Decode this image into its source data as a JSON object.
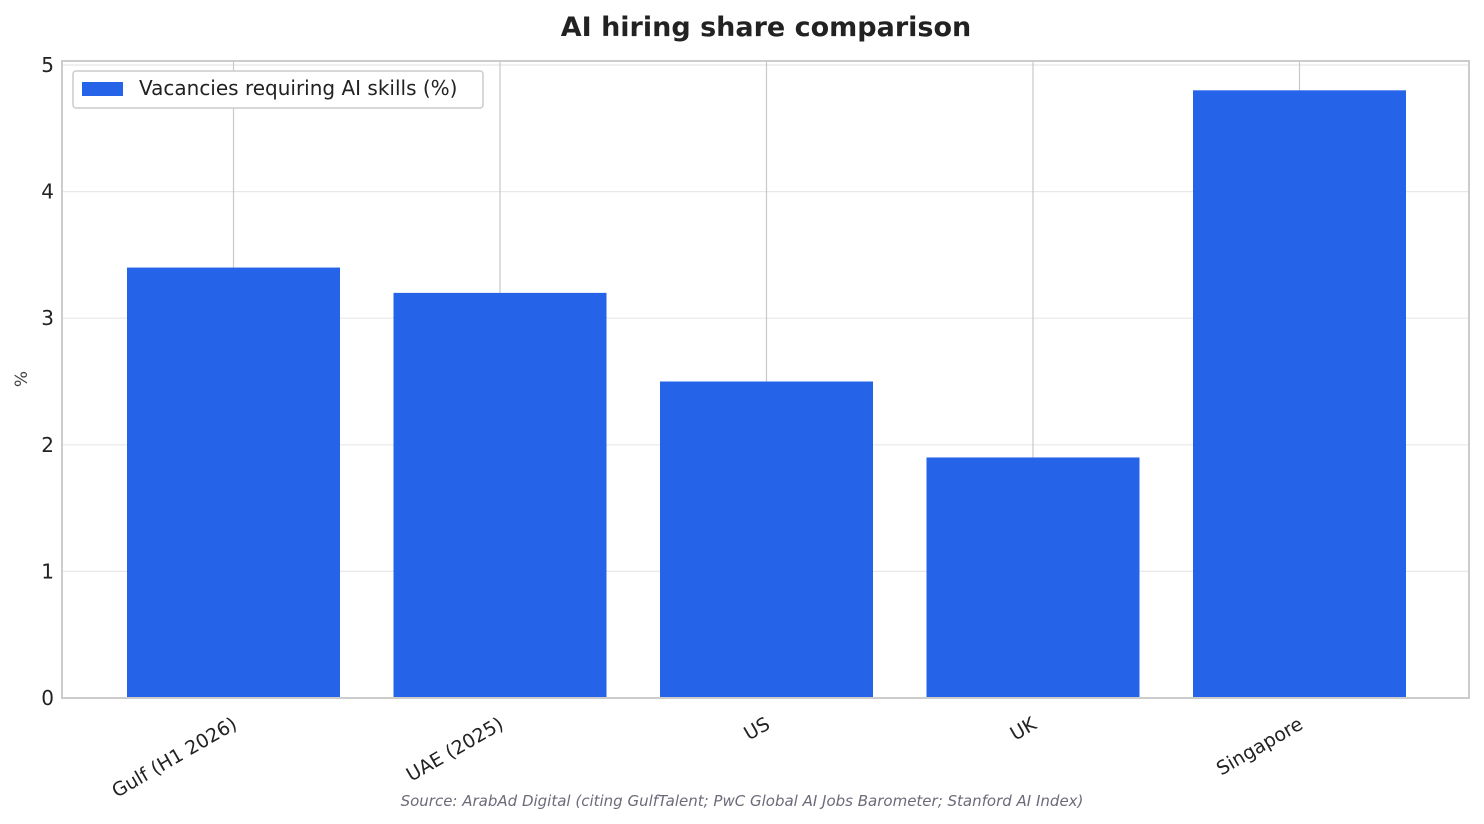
{
  "chart_data": {
    "type": "bar",
    "title": "AI hiring share comparison",
    "ylabel": "%",
    "xlabel": "",
    "categories": [
      "Gulf (H1 2026)",
      "UAE (2025)",
      "US",
      "UK",
      "Singapore"
    ],
    "series": [
      {
        "name": "Vacancies requiring AI skills (%)",
        "values": [
          3.4,
          3.2,
          2.5,
          1.9,
          4.8
        ]
      }
    ],
    "ylim": [
      0,
      5
    ],
    "yticks": [
      "0",
      "1",
      "2",
      "3",
      "4",
      "5"
    ],
    "grid": true,
    "legend_position": "top-left",
    "source": "Source: ArabAd Digital (citing GulfTalent; PwC Global AI Jobs Barometer; Stanford AI Index)",
    "colors": {
      "bar": "#2563e8",
      "grid": "#e8e8e8",
      "vertical_grid": "#c8c8c8",
      "frame": "#cccccc"
    }
  }
}
